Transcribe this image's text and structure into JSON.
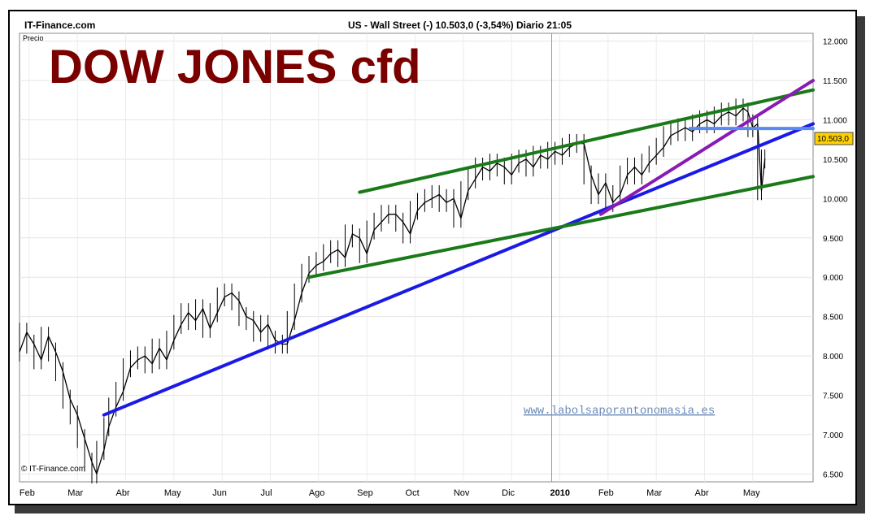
{
  "header": {
    "brand": "IT-Finance.com",
    "instrument": "US - Wall Street  (-)     10.503,0 (-3,54%)    Diario  21:05"
  },
  "chart_data": {
    "type": "line",
    "title": "DOW JONES cfd",
    "ylabel": "Precio",
    "copyright": "© IT-Finance.com",
    "watermark": "www.labolsaporantonomasia.es",
    "price_tag": "10.503,0",
    "year_marker": "2010",
    "ylim": [
      6400,
      12100
    ],
    "xlim": [
      0,
      16.45
    ],
    "x_ticks": [
      {
        "x": 0.2,
        "label": "Feb"
      },
      {
        "x": 1.2,
        "label": "Mar"
      },
      {
        "x": 2.2,
        "label": "Abr"
      },
      {
        "x": 3.2,
        "label": "May"
      },
      {
        "x": 4.2,
        "label": "Jun"
      },
      {
        "x": 5.2,
        "label": "Jul"
      },
      {
        "x": 6.2,
        "label": "Ago"
      },
      {
        "x": 7.2,
        "label": "Sep"
      },
      {
        "x": 8.2,
        "label": "Oct"
      },
      {
        "x": 9.2,
        "label": "Nov"
      },
      {
        "x": 10.2,
        "label": "Dic"
      },
      {
        "x": 11.2,
        "label": "2010",
        "bold": true
      },
      {
        "x": 12.2,
        "label": "Feb"
      },
      {
        "x": 13.2,
        "label": "Mar"
      },
      {
        "x": 14.2,
        "label": "Abr"
      },
      {
        "x": 15.2,
        "label": "May"
      }
    ],
    "y_ticks": [
      {
        "value": 6500,
        "label": "6.500"
      },
      {
        "value": 7000,
        "label": "7.000"
      },
      {
        "value": 7500,
        "label": "7.500"
      },
      {
        "value": 8000,
        "label": "8.000"
      },
      {
        "value": 8500,
        "label": "8.500"
      },
      {
        "value": 9000,
        "label": "9.000"
      },
      {
        "value": 9500,
        "label": "9.500"
      },
      {
        "value": 10000,
        "label": "10.000"
      },
      {
        "value": 10500,
        "label": "10.500"
      },
      {
        "value": 11000,
        "label": "11.000"
      },
      {
        "value": 11500,
        "label": "11.500"
      },
      {
        "value": 12000,
        "label": "12.000"
      }
    ],
    "series": [
      {
        "values": [
          [
            0.0,
            8050
          ],
          [
            0.15,
            8300
          ],
          [
            0.3,
            8150
          ],
          [
            0.45,
            7950
          ],
          [
            0.6,
            8250
          ],
          [
            0.75,
            8050
          ],
          [
            0.9,
            7800
          ],
          [
            1.05,
            7450
          ],
          [
            1.2,
            7250
          ],
          [
            1.35,
            6950
          ],
          [
            1.5,
            6650
          ],
          [
            1.6,
            6500
          ],
          [
            1.75,
            6800
          ],
          [
            1.85,
            7100
          ],
          [
            2.0,
            7350
          ],
          [
            2.15,
            7550
          ],
          [
            2.3,
            7850
          ],
          [
            2.45,
            7950
          ],
          [
            2.6,
            8000
          ],
          [
            2.75,
            7900
          ],
          [
            2.9,
            8100
          ],
          [
            3.05,
            7950
          ],
          [
            3.2,
            8200
          ],
          [
            3.35,
            8400
          ],
          [
            3.5,
            8550
          ],
          [
            3.65,
            8450
          ],
          [
            3.8,
            8600
          ],
          [
            3.95,
            8350
          ],
          [
            4.1,
            8550
          ],
          [
            4.25,
            8750
          ],
          [
            4.4,
            8800
          ],
          [
            4.55,
            8700
          ],
          [
            4.7,
            8500
          ],
          [
            4.85,
            8450
          ],
          [
            5.0,
            8300
          ],
          [
            5.15,
            8400
          ],
          [
            5.3,
            8200
          ],
          [
            5.45,
            8150
          ],
          [
            5.55,
            8150
          ],
          [
            5.7,
            8450
          ],
          [
            5.85,
            8800
          ],
          [
            6.0,
            9050
          ],
          [
            6.15,
            9150
          ],
          [
            6.3,
            9200
          ],
          [
            6.45,
            9300
          ],
          [
            6.6,
            9350
          ],
          [
            6.75,
            9250
          ],
          [
            6.9,
            9550
          ],
          [
            7.05,
            9500
          ],
          [
            7.2,
            9300
          ],
          [
            7.35,
            9600
          ],
          [
            7.5,
            9700
          ],
          [
            7.65,
            9800
          ],
          [
            7.8,
            9800
          ],
          [
            7.95,
            9700
          ],
          [
            8.1,
            9550
          ],
          [
            8.25,
            9850
          ],
          [
            8.4,
            9950
          ],
          [
            8.55,
            10000
          ],
          [
            8.7,
            10050
          ],
          [
            8.85,
            9950
          ],
          [
            9.0,
            10000
          ],
          [
            9.15,
            9750
          ],
          [
            9.3,
            10100
          ],
          [
            9.45,
            10250
          ],
          [
            9.6,
            10400
          ],
          [
            9.75,
            10350
          ],
          [
            9.9,
            10450
          ],
          [
            10.05,
            10400
          ],
          [
            10.2,
            10300
          ],
          [
            10.35,
            10450
          ],
          [
            10.5,
            10500
          ],
          [
            10.65,
            10400
          ],
          [
            10.8,
            10550
          ],
          [
            10.95,
            10500
          ],
          [
            11.1,
            10600
          ],
          [
            11.25,
            10550
          ],
          [
            11.4,
            10650
          ],
          [
            11.55,
            10700
          ],
          [
            11.7,
            10700
          ],
          [
            11.85,
            10300
          ],
          [
            12.0,
            10050
          ],
          [
            12.15,
            10200
          ],
          [
            12.3,
            9950
          ],
          [
            12.45,
            10050
          ],
          [
            12.6,
            10300
          ],
          [
            12.75,
            10400
          ],
          [
            12.9,
            10300
          ],
          [
            13.05,
            10450
          ],
          [
            13.2,
            10550
          ],
          [
            13.35,
            10650
          ],
          [
            13.5,
            10800
          ],
          [
            13.65,
            10850
          ],
          [
            13.8,
            10900
          ],
          [
            13.95,
            10850
          ],
          [
            14.1,
            10950
          ],
          [
            14.25,
            11000
          ],
          [
            14.4,
            10950
          ],
          [
            14.55,
            11050
          ],
          [
            14.7,
            11100
          ],
          [
            14.85,
            11050
          ],
          [
            15.0,
            11150
          ],
          [
            15.1,
            11100
          ],
          [
            15.2,
            10900
          ],
          [
            15.3,
            10950
          ],
          [
            15.38,
            10100
          ],
          [
            15.45,
            10503
          ]
        ]
      }
    ],
    "trendlines": [
      {
        "color": "#1a1ae6",
        "points": [
          [
            1.75,
            7250
          ],
          [
            16.45,
            10950
          ]
        ]
      },
      {
        "color": "#1a7a1a",
        "points": [
          [
            7.05,
            10080
          ],
          [
            16.45,
            11380
          ]
        ]
      },
      {
        "color": "#1a7a1a",
        "points": [
          [
            6.0,
            9000
          ],
          [
            16.45,
            10280
          ]
        ]
      },
      {
        "color": "#8a1ab4",
        "points": [
          [
            12.05,
            9800
          ],
          [
            16.45,
            11500
          ]
        ]
      },
      {
        "color": "#5a8af0",
        "points": [
          [
            13.9,
            10890
          ],
          [
            16.45,
            10890
          ]
        ]
      }
    ]
  }
}
